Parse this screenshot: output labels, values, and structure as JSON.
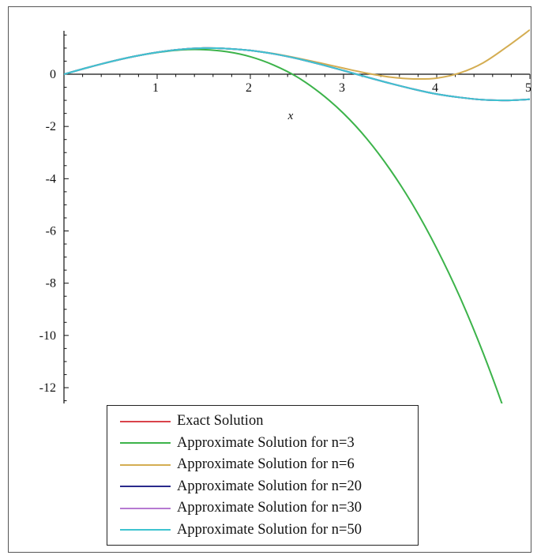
{
  "chart_data": {
    "type": "line",
    "title": "",
    "xlabel": "x",
    "ylabel": "",
    "xlim": [
      0,
      5
    ],
    "ylim": [
      -12.7,
      1.6
    ],
    "x_ticks": [
      1,
      2,
      3,
      4,
      5
    ],
    "x_tick_labels": [
      "1",
      "2",
      "3",
      "4",
      "5"
    ],
    "y_ticks": [
      0,
      -2,
      -4,
      -6,
      -8,
      -10,
      -12
    ],
    "y_tick_labels": [
      "0",
      "-2",
      "-4",
      "-6",
      "-8",
      "-10",
      "-12"
    ],
    "grid": false,
    "legend_position": "bottom-center",
    "series": [
      {
        "name": "Exact Solution",
        "color": "#d9434b",
        "x": [
          0,
          0.25,
          0.5,
          0.75,
          1,
          1.25,
          1.5,
          1.75,
          2,
          2.25,
          2.5,
          2.75,
          3,
          3.25,
          3.5,
          3.75,
          4,
          4.25,
          4.5,
          4.75,
          5
        ],
        "y": [
          0,
          0.25,
          0.48,
          0.68,
          0.84,
          0.95,
          1.0,
          0.98,
          0.91,
          0.78,
          0.6,
          0.38,
          0.14,
          -0.11,
          -0.35,
          -0.57,
          -0.76,
          -0.89,
          -0.98,
          -1.0,
          -0.96
        ]
      },
      {
        "name": "Approximate Solution for n=3",
        "color": "#3cb34a",
        "x": [
          0,
          0.25,
          0.5,
          0.75,
          1,
          1.25,
          1.5,
          1.75,
          2,
          2.25,
          2.5,
          2.75,
          3,
          3.25,
          3.5,
          3.75,
          4,
          4.25,
          4.5,
          4.75,
          5
        ],
        "y": [
          0,
          0.25,
          0.48,
          0.68,
          0.83,
          0.93,
          0.94,
          0.86,
          0.67,
          0.35,
          -0.1,
          -0.72,
          -1.5,
          -2.47,
          -3.65,
          -5.04,
          -6.67,
          -8.54,
          -10.69,
          -13.12,
          -15.83
        ]
      },
      {
        "name": "Approximate Solution for n=6",
        "color": "#d4ad52",
        "x": [
          0,
          0.25,
          0.5,
          0.75,
          1,
          1.25,
          1.5,
          1.75,
          2,
          2.25,
          2.5,
          2.75,
          3,
          3.25,
          3.5,
          3.75,
          4,
          4.25,
          4.5,
          4.75,
          5
        ],
        "y": [
          0,
          0.25,
          0.48,
          0.68,
          0.84,
          0.95,
          1.0,
          0.98,
          0.91,
          0.79,
          0.62,
          0.43,
          0.23,
          0.04,
          -0.11,
          -0.18,
          -0.15,
          0.05,
          0.44,
          1.04,
          1.7
        ]
      },
      {
        "name": "Approximate Solution for n=20",
        "color": "#2a2a8c",
        "x": [
          0,
          0.25,
          0.5,
          0.75,
          1,
          1.25,
          1.5,
          1.75,
          2,
          2.25,
          2.5,
          2.75,
          3,
          3.25,
          3.5,
          3.75,
          4,
          4.25,
          4.5,
          4.75,
          5
        ],
        "y": [
          0,
          0.25,
          0.48,
          0.68,
          0.84,
          0.95,
          1.0,
          0.98,
          0.91,
          0.78,
          0.6,
          0.38,
          0.14,
          -0.11,
          -0.35,
          -0.57,
          -0.76,
          -0.89,
          -0.98,
          -1.0,
          -0.96
        ]
      },
      {
        "name": "Approximate Solution for n=30",
        "color": "#b67ad1",
        "x": [
          0,
          0.25,
          0.5,
          0.75,
          1,
          1.25,
          1.5,
          1.75,
          2,
          2.25,
          2.5,
          2.75,
          3,
          3.25,
          3.5,
          3.75,
          4,
          4.25,
          4.5,
          4.75,
          5
        ],
        "y": [
          0,
          0.25,
          0.48,
          0.68,
          0.84,
          0.95,
          1.0,
          0.98,
          0.91,
          0.78,
          0.6,
          0.38,
          0.14,
          -0.11,
          -0.35,
          -0.57,
          -0.76,
          -0.89,
          -0.98,
          -1.0,
          -0.96
        ]
      },
      {
        "name": "Approximate Solution for n=50",
        "color": "#3ec3d0",
        "x": [
          0,
          0.25,
          0.5,
          0.75,
          1,
          1.25,
          1.5,
          1.75,
          2,
          2.25,
          2.5,
          2.75,
          3,
          3.25,
          3.5,
          3.75,
          4,
          4.25,
          4.5,
          4.75,
          5
        ],
        "y": [
          0,
          0.25,
          0.48,
          0.68,
          0.84,
          0.95,
          1.0,
          0.98,
          0.91,
          0.78,
          0.6,
          0.38,
          0.14,
          -0.11,
          -0.35,
          -0.57,
          -0.76,
          -0.89,
          -0.98,
          -1.0,
          -0.96
        ]
      }
    ]
  }
}
